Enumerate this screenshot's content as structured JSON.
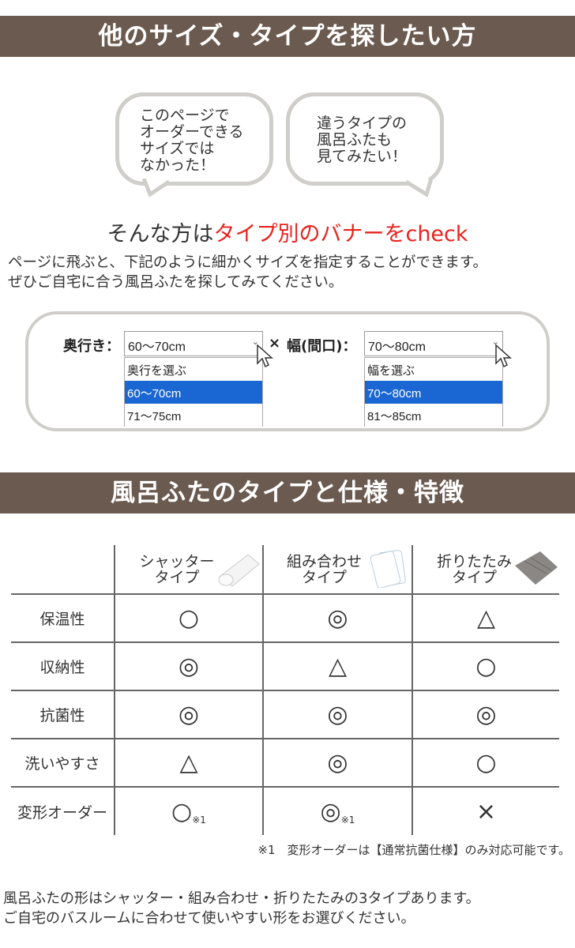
{
  "section1": {
    "title": "他のサイズ・タイプを探したい方"
  },
  "bubbles": [
    {
      "lines": [
        "このページで",
        "オーダーできる",
        "サイズでは",
        "なかった！"
      ]
    },
    {
      "lines": [
        "違うタイプの",
        "風呂ふたも",
        "見てみたい！"
      ]
    }
  ],
  "lead": {
    "prefix": "そんな方は",
    "highlight": "タイプ別のバナーをcheck"
  },
  "intro": [
    "ページに飛ぶと、下記のように細かくサイズを指定することができます。",
    "ぜひご自宅に合う風呂ふたを探してみてください。"
  ],
  "size_selector": {
    "depth": {
      "label": "奥行き：",
      "value": "60～70cm",
      "options": [
        "奥行を選ぶ",
        "60～70cm",
        "71～75cm"
      ],
      "selected": 1
    },
    "times": "×",
    "width": {
      "label": "幅(間口)：",
      "value": "70～80cm",
      "options": [
        "幅を選ぶ",
        "70～80cm",
        "81～85cm"
      ],
      "selected": 1
    }
  },
  "section2": {
    "title": "風呂ふたのタイプと仕様・特徴"
  },
  "table": {
    "columns": [
      {
        "lines": [
          "シャッター",
          "タイプ"
        ],
        "icon": "shutter-lid-image"
      },
      {
        "lines": [
          "組み合わせ",
          "タイプ"
        ],
        "icon": "combination-lid-image"
      },
      {
        "lines": [
          "折りたたみ",
          "タイプ"
        ],
        "icon": "folding-lid-image"
      }
    ],
    "rows": [
      {
        "label": "保温性",
        "cells": [
          "○",
          "◎",
          "△"
        ]
      },
      {
        "label": "収納性",
        "cells": [
          "◎",
          "△",
          "○"
        ]
      },
      {
        "label": "抗菌性",
        "cells": [
          "◎",
          "◎",
          "◎"
        ]
      },
      {
        "label": "洗いやすさ",
        "cells": [
          "△",
          "◎",
          "○"
        ]
      },
      {
        "label": "変形オーダー",
        "cells": [
          "○",
          "◎",
          "×"
        ],
        "notes": [
          "※1",
          "※1",
          ""
        ]
      }
    ],
    "footnote": "※1　変形オーダーは【通常抗菌仕様】のみ対応可能です。"
  },
  "outro": [
    "風呂ふたの形はシャッター・組み合わせ・折りたたみの3タイプあります。",
    "ご自宅のバスルームに合わせて使いやすい形をお選びください。"
  ],
  "colors": {
    "banner": "#6b5a4f",
    "highlight": "#e8231e",
    "selected_option": "#1a66d2"
  }
}
